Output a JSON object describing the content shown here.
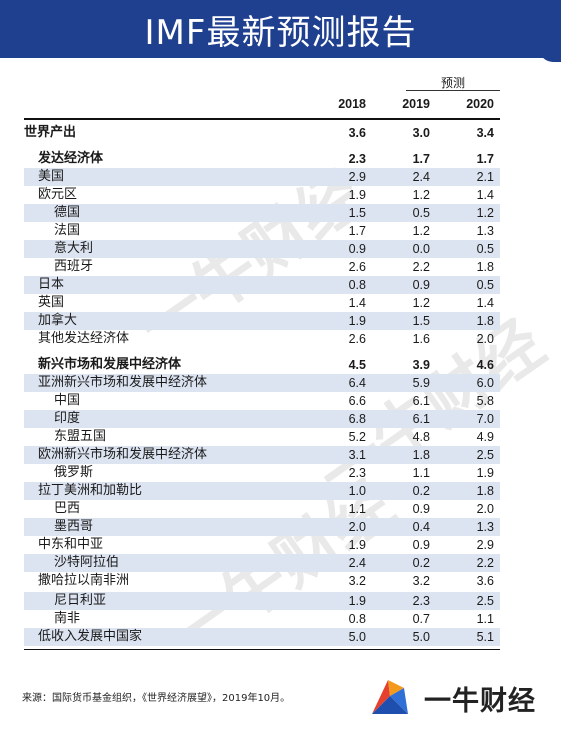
{
  "header": {
    "title": "IMF最新预测报告"
  },
  "table": {
    "forecast_label": "预测",
    "years": [
      "2018",
      "2019",
      "2020"
    ],
    "rows": [
      {
        "label": "世界产出",
        "v": [
          "3.6",
          "3.0",
          "3.4"
        ]
      },
      {
        "label": "发达经济体",
        "v": [
          "2.3",
          "1.7",
          "1.7"
        ]
      },
      {
        "label": "美国",
        "v": [
          "2.9",
          "2.4",
          "2.1"
        ]
      },
      {
        "label": "欧元区",
        "v": [
          "1.9",
          "1.2",
          "1.4"
        ]
      },
      {
        "label": "德国",
        "v": [
          "1.5",
          "0.5",
          "1.2"
        ]
      },
      {
        "label": "法国",
        "v": [
          "1.7",
          "1.2",
          "1.3"
        ]
      },
      {
        "label": "意大利",
        "v": [
          "0.9",
          "0.0",
          "0.5"
        ]
      },
      {
        "label": "西班牙",
        "v": [
          "2.6",
          "2.2",
          "1.8"
        ]
      },
      {
        "label": "日本",
        "v": [
          "0.8",
          "0.9",
          "0.5"
        ]
      },
      {
        "label": "英国",
        "v": [
          "1.4",
          "1.2",
          "1.4"
        ]
      },
      {
        "label": "加拿大",
        "v": [
          "1.9",
          "1.5",
          "1.8"
        ]
      },
      {
        "label": "其他发达经济体",
        "v": [
          "2.6",
          "1.6",
          "2.0"
        ]
      },
      {
        "label": "新兴市场和发展中经济体",
        "v": [
          "4.5",
          "3.9",
          "4.6"
        ]
      },
      {
        "label": "亚洲新兴市场和发展中经济体",
        "v": [
          "6.4",
          "5.9",
          "6.0"
        ]
      },
      {
        "label": "中国",
        "v": [
          "6.6",
          "6.1",
          "5.8"
        ]
      },
      {
        "label": "印度",
        "v": [
          "6.8",
          "6.1",
          "7.0"
        ]
      },
      {
        "label": "东盟五国",
        "v": [
          "5.2",
          "4.8",
          "4.9"
        ]
      },
      {
        "label": "欧洲新兴市场和发展中经济体",
        "v": [
          "3.1",
          "1.8",
          "2.5"
        ]
      },
      {
        "label": "俄罗斯",
        "v": [
          "2.3",
          "1.1",
          "1.9"
        ]
      },
      {
        "label": "拉丁美洲和加勒比",
        "v": [
          "1.0",
          "0.2",
          "1.8"
        ]
      },
      {
        "label": "巴西",
        "v": [
          "1.1",
          "0.9",
          "2.0"
        ]
      },
      {
        "label": "墨西哥",
        "v": [
          "2.0",
          "0.4",
          "1.3"
        ]
      },
      {
        "label": "中东和中亚",
        "v": [
          "1.9",
          "0.9",
          "2.9"
        ]
      },
      {
        "label": "沙特阿拉伯",
        "v": [
          "2.4",
          "0.2",
          "2.2"
        ]
      },
      {
        "label": "撒哈拉以南非洲",
        "v": [
          "3.2",
          "3.2",
          "3.6"
        ]
      },
      {
        "label": "尼日利亚",
        "v": [
          "1.9",
          "2.3",
          "2.5"
        ]
      },
      {
        "label": "南非",
        "v": [
          "0.8",
          "0.7",
          "1.1"
        ]
      },
      {
        "label": "低收入发展中国家",
        "v": [
          "5.0",
          "5.0",
          "5.1"
        ]
      }
    ]
  },
  "footnote": "来源：国际货币基金组织，《世界经济展望》，2019年10月。",
  "watermark": "一牛财经",
  "brand": {
    "name": "一牛财经"
  },
  "colors": {
    "header": "#1f3f8f",
    "row_shade": "#dde4f1",
    "logo_red": "#e5412f",
    "logo_blue": "#2f6fd6",
    "logo_orange": "#f39a1e"
  }
}
